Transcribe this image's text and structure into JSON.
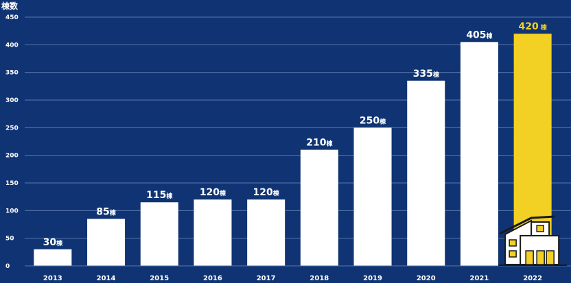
{
  "chart_data": {
    "type": "bar",
    "ylabel": "棟数",
    "ylim": [
      0,
      450
    ],
    "yticks": [
      "0",
      "50",
      "100",
      "150",
      "200",
      "250",
      "300",
      "350",
      "400",
      "450"
    ],
    "categories": [
      "2013",
      "2014",
      "2015",
      "2016",
      "2017",
      "2018",
      "2019",
      "2020",
      "2021",
      "2022"
    ],
    "values": [
      30,
      85,
      115,
      120,
      120,
      210,
      250,
      335,
      405,
      420
    ],
    "unit": "棟",
    "grid": true,
    "highlight_index": 9,
    "colors": {
      "background": "#103473",
      "bar": "#ffffff",
      "highlight": "#f2d024",
      "grid": "#5a77ad",
      "text": "#ffffff"
    },
    "highlight_icon": "house-icon"
  }
}
